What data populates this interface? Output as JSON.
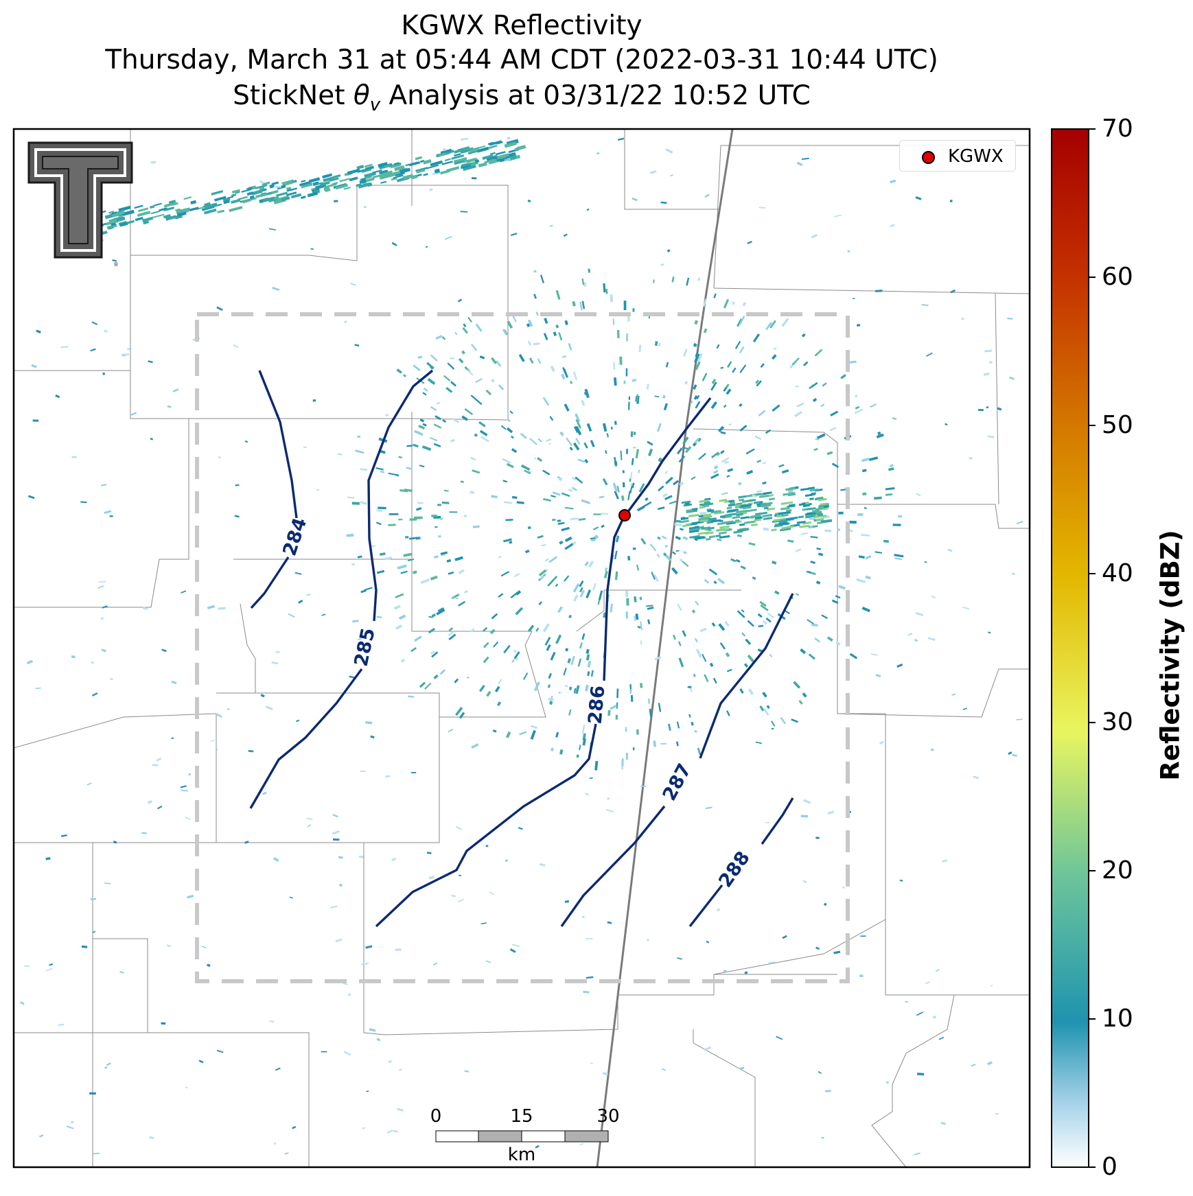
{
  "title": {
    "line1": "KGWX Reflectivity",
    "line2": "Thursday, March 31 at 05:44 AM CDT (2022-03-31 10:44 UTC)",
    "line3": "StickNet θv Analysis at 03/31/22 10:52 UTC"
  },
  "legend": {
    "label": "KGWX",
    "marker_color": "#e00000"
  },
  "colorbar": {
    "label": "Reflectivity (dBZ)",
    "ticks": [
      "0",
      "10",
      "20",
      "30",
      "40",
      "50",
      "60",
      "70"
    ],
    "colors": [
      "#ffffff",
      "#1f93b0",
      "#6cc49a",
      "#e8f560",
      "#e3b700",
      "#d47a00",
      "#c43000",
      "#a50000"
    ]
  },
  "contours": {
    "color": "#0b2a72",
    "labels": [
      "284",
      "285",
      "286",
      "287",
      "288"
    ]
  },
  "scalebar": {
    "ticks": [
      "0",
      "15",
      "30"
    ],
    "unit": "km"
  },
  "logo": {
    "name": "Texas Tech double-T logo"
  }
}
